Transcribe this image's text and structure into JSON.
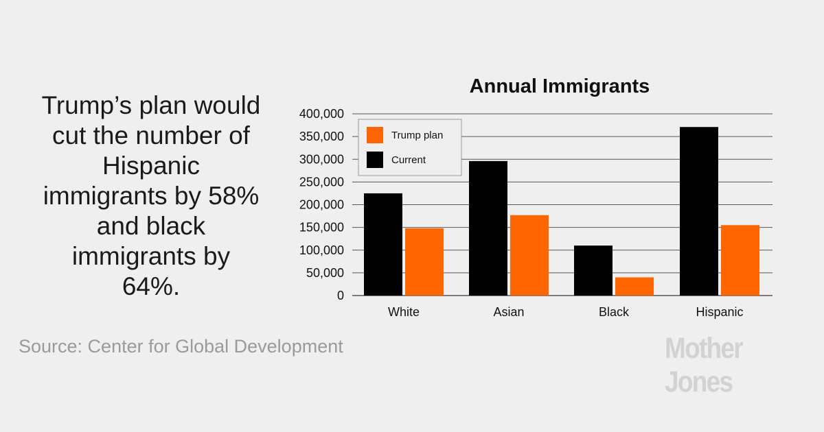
{
  "headline": "Trump’s plan would cut the number of Hispanic immigrants by 58% and black immigrants by 64%.",
  "source": "Source: Center for Global Development",
  "logo": "Mother Jones",
  "colors": {
    "current": "#000000",
    "trump_plan": "#ff6600",
    "grid": "#555555",
    "background": "#efefef"
  },
  "chart_data": {
    "type": "bar",
    "title": "Annual Immigrants",
    "xlabel": "",
    "ylabel": "",
    "ylim": [
      0,
      400000
    ],
    "yticks": [
      "400,000",
      "350,000",
      "300,000",
      "250,000",
      "200,000",
      "150,000",
      "100,000",
      "50,000",
      "0"
    ],
    "ytick_values": [
      400000,
      350000,
      300000,
      250000,
      200000,
      150000,
      100000,
      50000,
      0
    ],
    "categories": [
      "White",
      "Asian",
      "Black",
      "Hispanic"
    ],
    "series": [
      {
        "name": "Current",
        "color": "#000000",
        "values": [
          225000,
          296000,
          110000,
          371000
        ]
      },
      {
        "name": "Trump plan",
        "color": "#ff6600",
        "values": [
          148000,
          177000,
          40000,
          155000
        ]
      }
    ],
    "legend": [
      "Trump plan",
      "Current"
    ],
    "legend_position": "top-left",
    "grid": true
  }
}
